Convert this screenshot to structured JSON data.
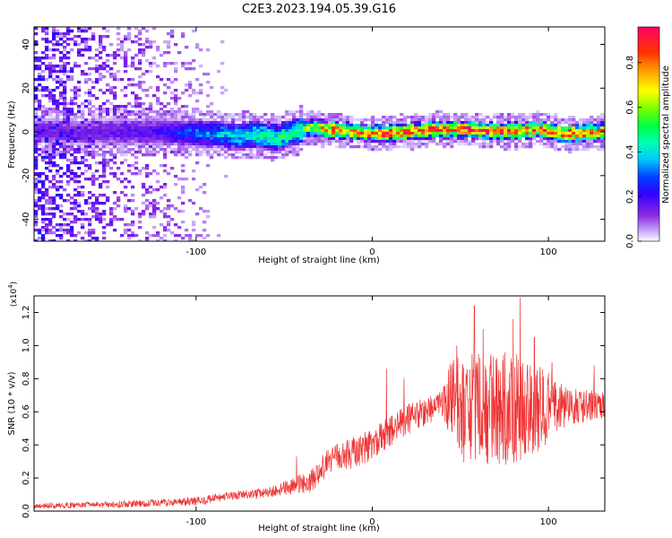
{
  "title": "C2E3.2023.194.05.39.G16",
  "chart_data": [
    {
      "type": "heatmap",
      "xlabel": "Height of straight line (km)",
      "ylabel": "Frequency (Hz)",
      "xlim": [
        -192,
        132
      ],
      "ylim": [
        -50,
        48
      ],
      "xticks": [
        -100,
        0,
        100
      ],
      "yticks": [
        -40,
        -20,
        0,
        20,
        40
      ],
      "colorbar": {
        "label": "Normalized spectral amplitude",
        "range": [
          0,
          0.96
        ],
        "ticks": [
          "0.0",
          "0.2",
          "0.4",
          "0.6",
          "0.8"
        ]
      },
      "band_center_hz": [
        [
          -160,
          0
        ],
        [
          -120,
          0
        ],
        [
          -90,
          -1
        ],
        [
          -75,
          -2
        ],
        [
          -65,
          -1
        ],
        [
          -55,
          -3
        ],
        [
          -45,
          0
        ],
        [
          -35,
          2
        ],
        [
          -25,
          1
        ],
        [
          -10,
          0
        ],
        [
          0,
          -1
        ],
        [
          20,
          0
        ],
        [
          35,
          1
        ],
        [
          55,
          1
        ],
        [
          75,
          0
        ],
        [
          95,
          1
        ],
        [
          110,
          -1
        ],
        [
          132,
          0
        ]
      ],
      "band_peak_amplitude": [
        [
          -160,
          0.15
        ],
        [
          -120,
          0.2
        ],
        [
          -100,
          0.32
        ],
        [
          -80,
          0.4
        ],
        [
          -60,
          0.48
        ],
        [
          -45,
          0.5
        ],
        [
          -35,
          0.62
        ],
        [
          -25,
          0.8
        ],
        [
          0,
          0.85
        ],
        [
          40,
          0.92
        ],
        [
          80,
          0.9
        ],
        [
          120,
          0.88
        ],
        [
          132,
          0.86
        ]
      ],
      "noise_amplitude_by_height": [
        [
          -192,
          0.22
        ],
        [
          -170,
          0.18
        ],
        [
          -140,
          0.12
        ],
        [
          -110,
          0.08
        ],
        [
          -95,
          0.04
        ],
        [
          -80,
          0.0
        ]
      ]
    },
    {
      "type": "line",
      "xlabel": "Height of straight line (km)",
      "ylabel": "SNR (10 * v/v)",
      "y_multiplier": "(x10",
      "y_multiplier_exp": "4",
      "y_multiplier_close": ")",
      "xlim": [
        -192,
        132
      ],
      "ylim": [
        0,
        1.3
      ],
      "xticks": [
        -100,
        0,
        100
      ],
      "yticks": [
        "0.0",
        "0.2",
        "0.4",
        "0.6",
        "0.8",
        "1.0",
        "1.2"
      ],
      "series": [
        {
          "color": "#ee3333",
          "trend": [
            [
              -192,
              0.03
            ],
            [
              -150,
              0.04
            ],
            [
              -120,
              0.05
            ],
            [
              -100,
              0.06
            ],
            [
              -80,
              0.09
            ],
            [
              -60,
              0.11
            ],
            [
              -45,
              0.15
            ],
            [
              -35,
              0.18
            ],
            [
              -25,
              0.3
            ],
            [
              -15,
              0.34
            ],
            [
              -5,
              0.38
            ],
            [
              5,
              0.44
            ],
            [
              15,
              0.52
            ],
            [
              25,
              0.58
            ],
            [
              35,
              0.63
            ],
            [
              43,
              0.65
            ],
            [
              50,
              0.62
            ],
            [
              70,
              0.62
            ],
            [
              90,
              0.62
            ],
            [
              110,
              0.63
            ],
            [
              132,
              0.64
            ]
          ],
          "amplitude": [
            [
              -192,
              0.015
            ],
            [
              -60,
              0.03
            ],
            [
              -40,
              0.06
            ],
            [
              -20,
              0.09
            ],
            [
              0,
              0.1
            ],
            [
              40,
              0.09
            ],
            [
              46,
              0.32
            ],
            [
              60,
              0.34
            ],
            [
              80,
              0.34
            ],
            [
              95,
              0.26
            ],
            [
              110,
              0.12
            ],
            [
              132,
              0.08
            ]
          ],
          "spikes": [
            [
              -43,
              0.33
            ],
            [
              8,
              0.86
            ],
            [
              18,
              0.8
            ],
            [
              48,
              1.0
            ],
            [
              58,
              1.24
            ],
            [
              63,
              1.1
            ],
            [
              80,
              1.16
            ],
            [
              84,
              1.29
            ],
            [
              92,
              1.05
            ],
            [
              102,
              0.9
            ],
            [
              126,
              0.88
            ]
          ]
        }
      ]
    }
  ]
}
